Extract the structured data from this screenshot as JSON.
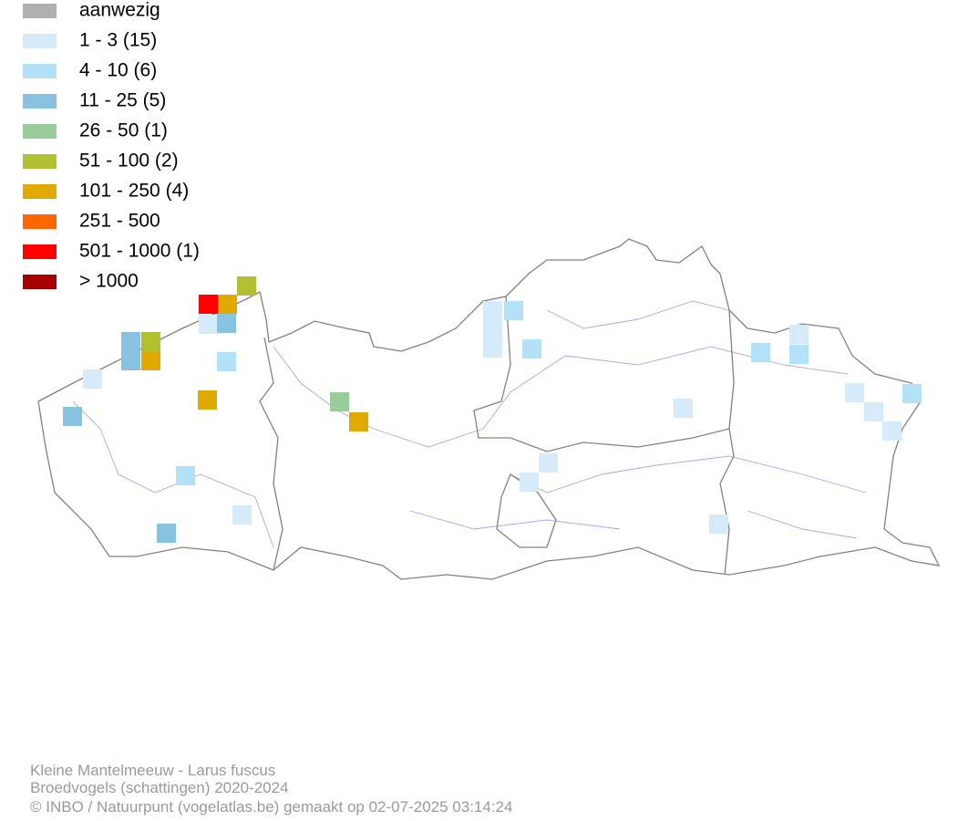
{
  "legend": {
    "items": [
      {
        "label": "aanwezig",
        "color": "#b0b0b0"
      },
      {
        "label": "1 - 3 (15)",
        "color": "#d6ebf9"
      },
      {
        "label": "4 - 10 (6)",
        "color": "#b3e1f7"
      },
      {
        "label": "11 - 25 (5)",
        "color": "#87c2e0"
      },
      {
        "label": "26 - 50 (1)",
        "color": "#99cc99"
      },
      {
        "label": "51 - 100 (2)",
        "color": "#b0c030"
      },
      {
        "label": "101 - 250 (4)",
        "color": "#e0aa00"
      },
      {
        "label": "251 - 500",
        "color": "#ff6600"
      },
      {
        "label": "501 - 1000 (1)",
        "color": "#ff0000"
      },
      {
        "label": "> 1000",
        "color": "#a80000"
      }
    ]
  },
  "footer": {
    "lines": [
      "Kleine Mantelmeeuw - Larus fuscus",
      "Broedvogels (schattingen) 2020-2024",
      "© INBO / Natuurpunt (vogelatlas.be) gemaakt op 02-07-2025 03:14:24"
    ]
  }
}
